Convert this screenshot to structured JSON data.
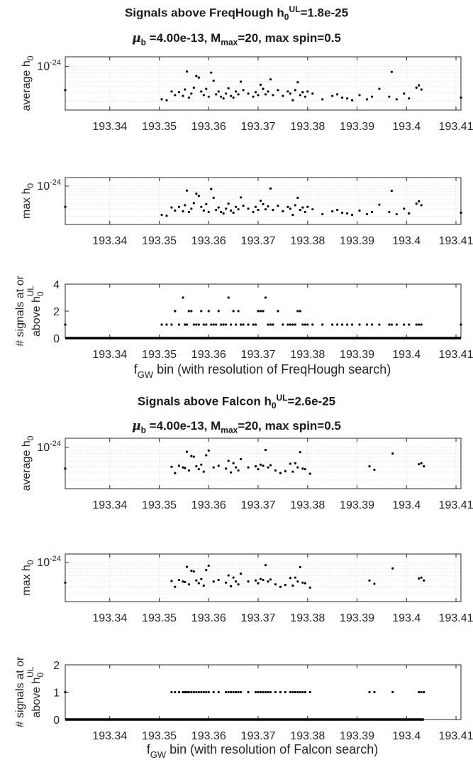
{
  "figure_a": {
    "title_prefix": "Signals above FreqHough h",
    "title_sub": "0",
    "title_sup": "UL",
    "title_suffix": "=1.8e-25",
    "subtitle_mu": "μ",
    "subtitle_mu_sub": "b",
    "subtitle_mid": " =4.00e-13, M",
    "subtitle_m_sub": "max",
    "subtitle_suffix": "=20, max spin=0.5",
    "xlabel_prefix": "f",
    "xlabel_sub": "GW",
    "xlabel_suffix": " bin (with resolution of FreqHough search)"
  },
  "figure_b": {
    "title_prefix": "Signals above Falcon h",
    "title_sub": "0",
    "title_sup": "UL",
    "title_suffix": "=2.6e-25",
    "subtitle_mu": "μ",
    "subtitle_mu_sub": "b",
    "subtitle_mid": " =4.00e-13, M",
    "subtitle_m_sub": "max",
    "subtitle_suffix": "=20, max spin=0.5",
    "xlabel_prefix": "f",
    "xlabel_sub": "GW",
    "xlabel_suffix": " bin (with resolution of Falcon search)"
  },
  "colors": {
    "marker": "#000000",
    "axis": "#262626",
    "grid": "#dcdcdc",
    "text": "#262626"
  },
  "chart_data": [
    {
      "type": "scatter",
      "name": "freqhough-average-h0",
      "ylabel_main": "average h",
      "ylabel_sub": "0",
      "yscale": "log",
      "ylim": [
        2.2e-25,
        1.4e-24
      ],
      "ytick_base": "10",
      "ytick_exp": "-24",
      "ytick_value": 1e-24,
      "xlim": [
        193.331,
        193.411
      ],
      "xticks": [
        "193.34",
        "193.35",
        "193.36",
        "193.37",
        "193.38",
        "193.39",
        "193.4",
        "193.41"
      ],
      "grid": true,
      "x": [
        193.331,
        193.3505,
        193.3515,
        193.3525,
        193.3532,
        193.354,
        193.3548,
        193.3552,
        193.3556,
        193.356,
        193.3565,
        193.357,
        193.3575,
        193.358,
        193.3585,
        193.359,
        193.3595,
        193.36,
        193.3605,
        193.361,
        193.3615,
        193.362,
        193.3625,
        193.363,
        193.3635,
        193.364,
        193.3645,
        193.365,
        193.3655,
        193.366,
        193.3665,
        193.367,
        193.368,
        193.369,
        193.3695,
        193.37,
        193.3705,
        193.371,
        193.3715,
        193.372,
        193.3725,
        193.373,
        193.374,
        193.375,
        193.376,
        193.3765,
        193.377,
        193.3775,
        193.378,
        193.3785,
        193.379,
        193.3795,
        193.38,
        193.381,
        193.383,
        193.385,
        193.386,
        193.387,
        193.388,
        193.389,
        193.3905,
        193.392,
        193.393,
        193.3945,
        193.3965,
        193.397,
        193.398,
        193.3995,
        193.4005,
        193.402,
        193.4025,
        193.403,
        193.411
      ],
      "y": [
        4.4e-25,
        3.2e-25,
        3.1e-25,
        4.2e-25,
        3.7e-25,
        4.1e-25,
        3.6e-25,
        4.5e-25,
        8.4e-25,
        3.4e-25,
        3.9e-25,
        4.8e-25,
        7.2e-25,
        6.8e-25,
        4.2e-25,
        3.7e-25,
        4.6e-25,
        3.5e-25,
        8.1e-25,
        6.1e-25,
        3.8e-25,
        4.2e-25,
        3.5e-25,
        3.3e-25,
        3.9e-25,
        4.7e-25,
        3.6e-25,
        3.4e-25,
        4.2e-25,
        3.8e-25,
        5.9e-25,
        4.4e-25,
        3.9e-25,
        3.5e-25,
        4.1e-25,
        3.7e-25,
        5.3e-25,
        4.6e-25,
        3.8e-25,
        4.2e-25,
        6.4e-25,
        3.7e-25,
        4.4e-25,
        3.6e-25,
        4.2e-25,
        3.9e-25,
        3.1e-25,
        4.4e-25,
        5.8e-25,
        3.7e-25,
        4.1e-25,
        3.5e-25,
        4.2e-25,
        3.9e-25,
        3.2e-25,
        3.6e-25,
        3.8e-25,
        3.4e-25,
        3.3e-25,
        3.1e-25,
        3.7e-25,
        3.2e-25,
        3.5e-25,
        4.6e-25,
        3.5e-25,
        8.3e-25,
        3.2e-25,
        3.9e-25,
        3.3e-25,
        4.8e-25,
        5.2e-25,
        4.5e-25,
        3.4e-25
      ]
    },
    {
      "type": "scatter",
      "name": "freqhough-max-h0",
      "ylabel_main": "max h",
      "ylabel_sub": "0",
      "yscale": "log",
      "ylim": [
        2.2e-25,
        1.4e-24
      ],
      "ytick_base": "10",
      "ytick_exp": "-24",
      "ytick_value": 1e-24,
      "xlim": [
        193.331,
        193.411
      ],
      "xticks": [
        "193.34",
        "193.35",
        "193.36",
        "193.37",
        "193.38",
        "193.39",
        "193.4",
        "193.41"
      ],
      "grid": true,
      "x": [
        193.331,
        193.3505,
        193.3515,
        193.3525,
        193.3532,
        193.354,
        193.3548,
        193.3552,
        193.3556,
        193.356,
        193.3565,
        193.357,
        193.3575,
        193.358,
        193.3585,
        193.359,
        193.3595,
        193.36,
        193.3605,
        193.361,
        193.3615,
        193.362,
        193.3625,
        193.363,
        193.3635,
        193.364,
        193.3645,
        193.365,
        193.3655,
        193.366,
        193.3665,
        193.367,
        193.368,
        193.369,
        193.3695,
        193.37,
        193.3705,
        193.371,
        193.3715,
        193.372,
        193.3725,
        193.373,
        193.374,
        193.375,
        193.376,
        193.3765,
        193.377,
        193.3775,
        193.378,
        193.3785,
        193.379,
        193.3795,
        193.38,
        193.381,
        193.383,
        193.385,
        193.386,
        193.387,
        193.388,
        193.389,
        193.3905,
        193.392,
        193.393,
        193.3945,
        193.3965,
        193.397,
        193.398,
        193.3995,
        193.4005,
        193.402,
        193.4025,
        193.403,
        193.411
      ],
      "y": [
        4.4e-25,
        3.2e-25,
        3.1e-25,
        4.3e-25,
        3.8e-25,
        4.4e-25,
        3.7e-25,
        4.7e-25,
        8.4e-25,
        3.6e-25,
        4.1e-25,
        5.1e-25,
        7.4e-25,
        6.8e-25,
        4.4e-25,
        3.8e-25,
        4.9e-25,
        3.6e-25,
        8.9e-25,
        6.3e-25,
        3.9e-25,
        4.3e-25,
        3.6e-25,
        3.4e-25,
        4.1e-25,
        5e-25,
        3.8e-25,
        3.5e-25,
        4.4e-25,
        4e-25,
        6.4e-25,
        4.6e-25,
        4.1e-25,
        3.6e-25,
        4.4e-25,
        3.9e-25,
        5.6e-25,
        4.9e-25,
        4e-25,
        4.5e-25,
        9.1e-25,
        3.9e-25,
        4.6e-25,
        3.7e-25,
        4.4e-25,
        4.1e-25,
        3.2e-25,
        4.7e-25,
        6.3e-25,
        3.9e-25,
        4.3e-25,
        3.6e-25,
        4.4e-25,
        4e-25,
        3.3e-25,
        3.7e-25,
        3.9e-25,
        3.5e-25,
        3.4e-25,
        3.2e-25,
        3.8e-25,
        3.3e-25,
        3.6e-25,
        4.8e-25,
        3.6e-25,
        8.3e-25,
        3.3e-25,
        4.1e-25,
        3.4e-25,
        5e-25,
        5.5e-25,
        4.7e-25,
        3.5e-25
      ]
    },
    {
      "type": "scatter",
      "name": "freqhough-signal-count",
      "ylabel_main": "# signals at or",
      "ylabel2_main": "above h",
      "ylabel2_sub": "0",
      "ylabel2_sup": "UL",
      "yscale": "linear",
      "ylim": [
        0,
        4
      ],
      "yticks": [
        0,
        2,
        4
      ],
      "xlim": [
        193.331,
        193.411
      ],
      "xticks": [
        "193.34",
        "193.35",
        "193.36",
        "193.37",
        "193.38",
        "193.39",
        "193.4",
        "193.41"
      ],
      "grid": false,
      "zero_range": [
        193.331,
        193.411
      ],
      "x": [
        193.331,
        193.3505,
        193.3515,
        193.3525,
        193.3532,
        193.354,
        193.3548,
        193.3552,
        193.3556,
        193.356,
        193.3565,
        193.357,
        193.3575,
        193.358,
        193.3585,
        193.359,
        193.3595,
        193.36,
        193.3605,
        193.361,
        193.3615,
        193.362,
        193.3625,
        193.363,
        193.3635,
        193.364,
        193.3645,
        193.365,
        193.3655,
        193.366,
        193.3665,
        193.367,
        193.368,
        193.369,
        193.3695,
        193.37,
        193.3705,
        193.371,
        193.3715,
        193.372,
        193.3725,
        193.373,
        193.374,
        193.375,
        193.376,
        193.3765,
        193.377,
        193.3775,
        193.378,
        193.3785,
        193.379,
        193.3795,
        193.38,
        193.381,
        193.383,
        193.385,
        193.386,
        193.387,
        193.388,
        193.389,
        193.3905,
        193.392,
        193.393,
        193.3945,
        193.3965,
        193.397,
        193.398,
        193.3995,
        193.4005,
        193.402,
        193.4025,
        193.403,
        193.411
      ],
      "y": [
        1,
        1,
        1,
        1,
        2,
        1,
        3,
        1,
        1,
        2,
        2,
        1,
        1,
        1,
        2,
        1,
        1,
        2,
        1,
        1,
        1,
        2,
        1,
        1,
        1,
        3,
        1,
        2,
        1,
        2,
        1,
        1,
        1,
        1,
        1,
        2,
        2,
        2,
        3,
        1,
        1,
        1,
        2,
        1,
        1,
        1,
        1,
        1,
        2,
        2,
        1,
        1,
        1,
        1,
        1,
        1,
        1,
        1,
        1,
        1,
        1,
        1,
        1,
        1,
        1,
        1,
        1,
        1,
        1,
        1,
        1,
        1,
        1
      ]
    },
    {
      "type": "scatter",
      "name": "falcon-average-h0",
      "ylabel_main": "average h",
      "ylabel_sub": "0",
      "yscale": "log",
      "ylim": [
        2.2e-25,
        1.4e-24
      ],
      "ytick_base": "10",
      "ytick_exp": "-24",
      "ytick_value": 1e-24,
      "xlim": [
        193.331,
        193.411
      ],
      "xticks": [
        "193.34",
        "193.35",
        "193.36",
        "193.37",
        "193.38",
        "193.39",
        "193.4",
        "193.41"
      ],
      "grid": true,
      "x": [
        193.331,
        193.3525,
        193.3532,
        193.354,
        193.3548,
        193.3552,
        193.3556,
        193.356,
        193.3565,
        193.357,
        193.3575,
        193.358,
        193.3585,
        193.359,
        193.3595,
        193.36,
        193.361,
        193.362,
        193.3635,
        193.364,
        193.3645,
        193.365,
        193.3655,
        193.366,
        193.3665,
        193.368,
        193.3695,
        193.37,
        193.3705,
        193.371,
        193.3715,
        193.372,
        193.3725,
        193.3735,
        193.3745,
        193.3755,
        193.3765,
        193.377,
        193.3775,
        193.378,
        193.3785,
        193.379,
        193.3795,
        193.3805,
        193.3925,
        193.3935,
        193.3972,
        193.4025,
        193.403,
        193.4035
      ],
      "y": [
        4.6e-25,
        4.9e-25,
        3.9e-25,
        5.1e-25,
        4.8e-25,
        4.7e-25,
        8.5e-25,
        4.3e-25,
        7.3e-25,
        7.1e-25,
        5e-25,
        4.5e-25,
        5.3e-25,
        4.1e-25,
        7.5e-25,
        8.9e-25,
        4.8e-25,
        5.1e-25,
        4.6e-25,
        6.1e-25,
        4e-25,
        5.6e-25,
        4.8e-25,
        4.3e-25,
        6.5e-25,
        4.8e-25,
        5e-25,
        4.5e-25,
        5.3e-25,
        5.1e-25,
        9.1e-25,
        4.8e-25,
        5.2e-25,
        4.3e-25,
        3.9e-25,
        4.2e-25,
        5.5e-25,
        4.1e-25,
        5.6e-25,
        4.8e-25,
        8.4e-25,
        4.6e-25,
        4.5e-25,
        3.8e-25,
        5e-25,
        4.4e-25,
        8e-25,
        5.4e-25,
        5.6e-25,
        5e-25
      ]
    },
    {
      "type": "scatter",
      "name": "falcon-max-h0",
      "ylabel_main": "max h",
      "ylabel_sub": "0",
      "yscale": "log",
      "ylim": [
        2.2e-25,
        1.4e-24
      ],
      "ytick_base": "10",
      "ytick_exp": "-24",
      "ytick_value": 1e-24,
      "xlim": [
        193.331,
        193.411
      ],
      "xticks": [
        "193.34",
        "193.35",
        "193.36",
        "193.37",
        "193.38",
        "193.39",
        "193.4",
        "193.41"
      ],
      "grid": true,
      "x": [
        193.331,
        193.3525,
        193.3532,
        193.354,
        193.3548,
        193.3552,
        193.3556,
        193.356,
        193.3565,
        193.357,
        193.3575,
        193.358,
        193.3585,
        193.359,
        193.3595,
        193.36,
        193.361,
        193.362,
        193.3635,
        193.364,
        193.3645,
        193.365,
        193.3655,
        193.366,
        193.3665,
        193.368,
        193.3695,
        193.37,
        193.3705,
        193.371,
        193.3715,
        193.372,
        193.3725,
        193.3735,
        193.3745,
        193.3755,
        193.3765,
        193.377,
        193.3775,
        193.378,
        193.3785,
        193.379,
        193.3795,
        193.3805,
        193.3925,
        193.3935,
        193.3972,
        193.4025,
        193.403,
        193.4035
      ],
      "y": [
        4.6e-25,
        4.9e-25,
        3.9e-25,
        5.1e-25,
        4.8e-25,
        4.7e-25,
        8.5e-25,
        4.3e-25,
        7.3e-25,
        7.1e-25,
        5e-25,
        4.5e-25,
        5.3e-25,
        4.1e-25,
        7.5e-25,
        8.9e-25,
        4.8e-25,
        5.1e-25,
        4.6e-25,
        6.1e-25,
        4e-25,
        5.6e-25,
        4.8e-25,
        4.3e-25,
        6.5e-25,
        4.8e-25,
        5e-25,
        4.5e-25,
        5.3e-25,
        5.1e-25,
        9.1e-25,
        4.8e-25,
        5.2e-25,
        4.3e-25,
        3.9e-25,
        4.2e-25,
        5.5e-25,
        4.1e-25,
        5.6e-25,
        4.8e-25,
        8.4e-25,
        4.6e-25,
        4.5e-25,
        3.8e-25,
        5e-25,
        4.4e-25,
        8e-25,
        5.4e-25,
        5.6e-25,
        5e-25
      ]
    },
    {
      "type": "scatter",
      "name": "falcon-signal-count",
      "ylabel_main": "# signals at or",
      "ylabel2_main": "above h",
      "ylabel2_sub": "0",
      "ylabel2_sup": "UL",
      "yscale": "linear",
      "ylim": [
        0,
        2
      ],
      "yticks": [
        0,
        1,
        2
      ],
      "xlim": [
        193.331,
        193.411
      ],
      "xticks": [
        "193.34",
        "193.35",
        "193.36",
        "193.37",
        "193.38",
        "193.39",
        "193.4",
        "193.41"
      ],
      "grid": false,
      "zero_range": [
        193.331,
        193.4035
      ],
      "x": [
        193.331,
        193.3525,
        193.3532,
        193.354,
        193.3548,
        193.3552,
        193.3556,
        193.356,
        193.3565,
        193.357,
        193.3575,
        193.358,
        193.3585,
        193.359,
        193.3595,
        193.36,
        193.361,
        193.362,
        193.3635,
        193.364,
        193.3645,
        193.365,
        193.3655,
        193.366,
        193.3665,
        193.368,
        193.3695,
        193.37,
        193.3705,
        193.371,
        193.3715,
        193.372,
        193.3725,
        193.3735,
        193.3745,
        193.3755,
        193.3765,
        193.377,
        193.3775,
        193.378,
        193.3785,
        193.379,
        193.3795,
        193.3805,
        193.3925,
        193.3935,
        193.3972,
        193.4025,
        193.403,
        193.4035
      ],
      "y": [
        1,
        1,
        1,
        1,
        1,
        1,
        1,
        1,
        1,
        1,
        1,
        1,
        1,
        1,
        1,
        1,
        1,
        1,
        1,
        1,
        1,
        1,
        1,
        1,
        1,
        1,
        1,
        1,
        1,
        1,
        1,
        1,
        1,
        1,
        1,
        1,
        1,
        1,
        1,
        1,
        1,
        1,
        1,
        1,
        1,
        1,
        1,
        1,
        1,
        1
      ]
    }
  ]
}
